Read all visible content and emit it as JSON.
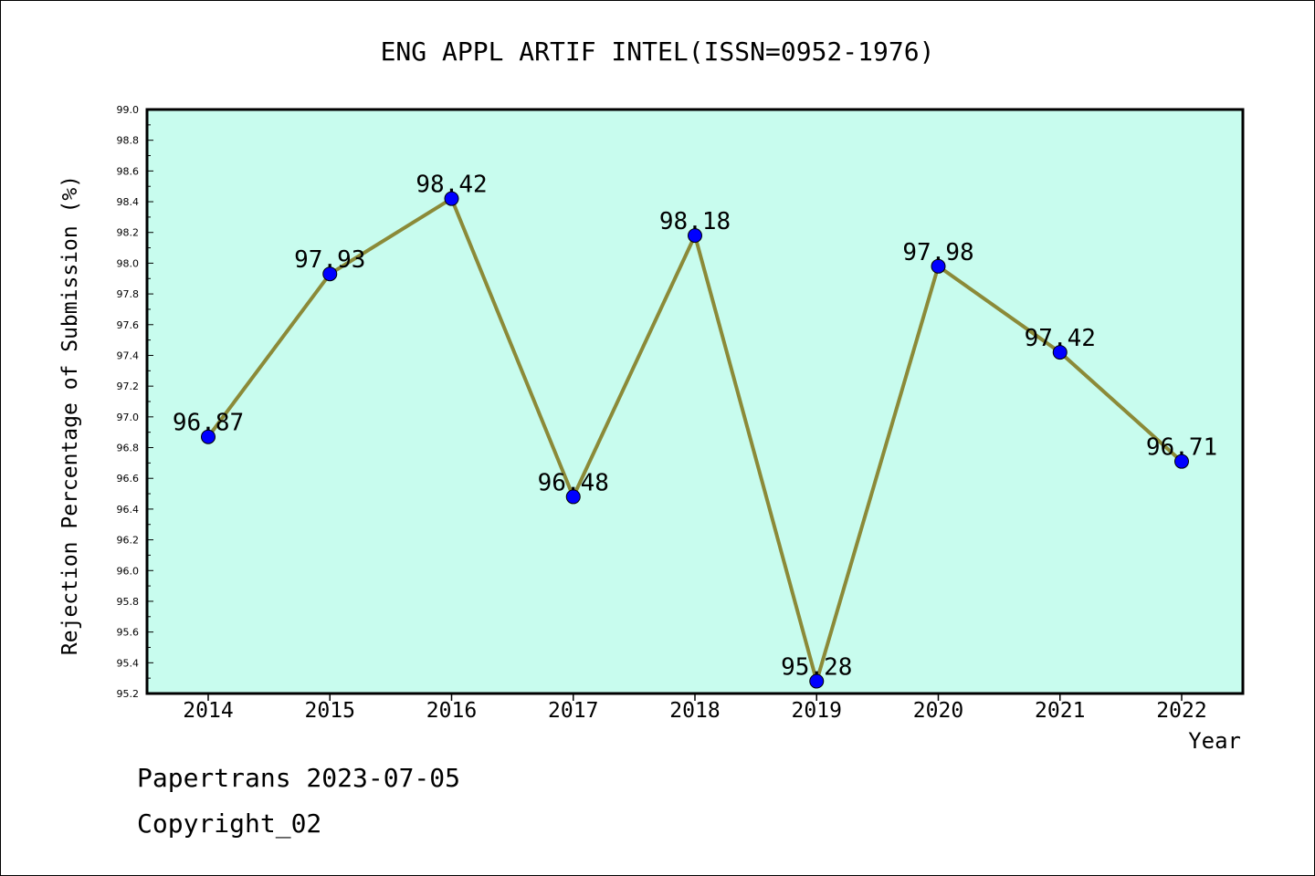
{
  "chart_data": {
    "type": "line",
    "title": "ENG APPL ARTIF INTEL(ISSN=0952-1976)",
    "xlabel": "Year",
    "ylabel": "Rejection Percentage of Submission (%)",
    "categories": [
      "2014",
      "2015",
      "2016",
      "2017",
      "2018",
      "2019",
      "2020",
      "2021",
      "2022"
    ],
    "values": [
      96.87,
      97.93,
      98.42,
      96.48,
      98.18,
      95.28,
      97.98,
      97.42,
      96.71
    ],
    "data_labels": [
      "96.87",
      "97.93",
      "98.42",
      "96.48",
      "98.18",
      "95.28",
      "97.98",
      "97.42",
      "96.71"
    ],
    "ylim": [
      95.2,
      99.0
    ],
    "yticks": [
      "95.2",
      "95.4",
      "95.6",
      "95.8",
      "96.0",
      "96.2",
      "96.4",
      "96.6",
      "96.8",
      "97.0",
      "97.2",
      "97.4",
      "97.6",
      "97.8",
      "98.0",
      "98.2",
      "98.4",
      "98.6",
      "98.8",
      "99.0"
    ],
    "grid": false,
    "colors": {
      "plot_background": "#c8fcee",
      "line": "#8b8a38",
      "marker": "#0000ff"
    }
  },
  "footer": {
    "line1": "Papertrans 2023-07-05",
    "line2": "Copyright_02"
  }
}
